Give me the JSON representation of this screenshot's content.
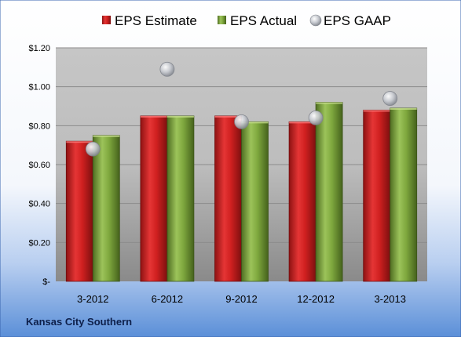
{
  "chart_data": {
    "type": "bar",
    "company": "Kansas City Southern",
    "categories": [
      "3-2012",
      "6-2012",
      "9-2012",
      "12-2012",
      "3-2013"
    ],
    "series": [
      {
        "name": "EPS Estimate",
        "kind": "bar",
        "color": "#cc1f1f",
        "values": [
          0.72,
          0.85,
          0.85,
          0.82,
          0.88
        ]
      },
      {
        "name": "EPS Actual",
        "kind": "bar",
        "color": "#79a23b",
        "values": [
          0.75,
          0.85,
          0.82,
          0.92,
          0.89
        ]
      },
      {
        "name": "EPS GAAP",
        "kind": "marker",
        "color": "#b8bcc4",
        "values": [
          0.68,
          1.09,
          0.82,
          0.84,
          0.94
        ]
      }
    ],
    "y_ticks": [
      "$-",
      "$0.20",
      "$0.40",
      "$0.60",
      "$0.80",
      "$1.00",
      "$1.20"
    ],
    "ylim": [
      0,
      1.2
    ],
    "grid": true,
    "legend_position": "top",
    "background": {
      "top": "#ffffff",
      "bottom": "#5b8fd8"
    }
  }
}
